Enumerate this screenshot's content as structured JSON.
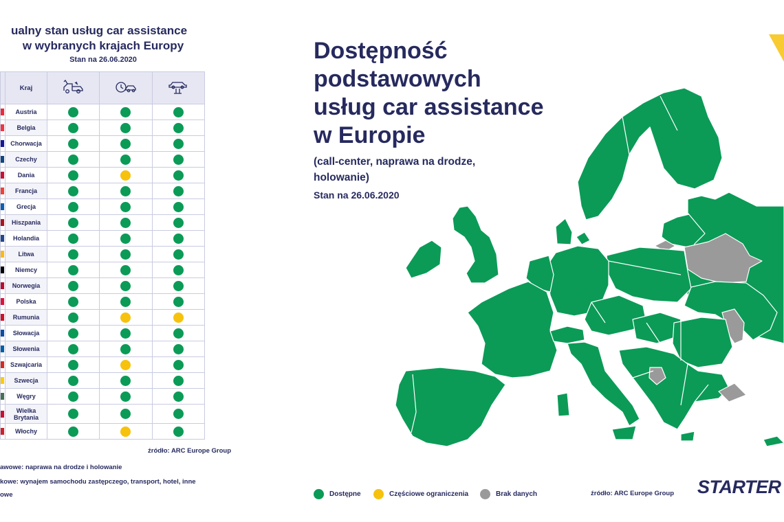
{
  "left_panel": {
    "title_line1": "ualny stan usług car assistance",
    "title_line2": "w wybranych krajach Europy",
    "date": "Stan na 26.06.2020",
    "header_country": "Kraj",
    "header_icons": [
      "tow-truck-icon",
      "clock-car-icon",
      "car-lift-icon"
    ],
    "source": "źródło: ARC Europe Group",
    "note1": "awowe: naprawa na drodze i holowanie",
    "note2": "kowe: wynajem samochodu zastępczego, transport, hotel, inne",
    "note3": "owe"
  },
  "chart_data": [
    {
      "type": "table",
      "title": "ualny stan usług car assistance w wybranych krajach Europy",
      "columns": [
        "Kraj",
        "tow-truck-icon",
        "clock-car-icon",
        "car-lift-icon"
      ],
      "rows": [
        {
          "country": "Austria",
          "flag": "#ed2939",
          "values": [
            "Dostępne",
            "Dostępne",
            "Dostępne"
          ]
        },
        {
          "country": "Belgia",
          "flag": "#ef3340",
          "values": [
            "Dostępne",
            "Dostępne",
            "Dostępne"
          ]
        },
        {
          "country": "Chorwacja",
          "flag": "#171796",
          "values": [
            "Dostępne",
            "Dostępne",
            "Dostępne"
          ]
        },
        {
          "country": "Czechy",
          "flag": "#11457e",
          "values": [
            "Dostępne",
            "Dostępne",
            "Dostępne"
          ]
        },
        {
          "country": "Dania",
          "flag": "#c8102e",
          "values": [
            "Dostępne",
            "Częściowe ograniczenia",
            "Dostępne"
          ]
        },
        {
          "country": "Francja",
          "flag": "#ef4135",
          "values": [
            "Dostępne",
            "Dostępne",
            "Dostępne"
          ]
        },
        {
          "country": "Grecja",
          "flag": "#0d5eaf",
          "values": [
            "Dostępne",
            "Dostępne",
            "Dostępne"
          ]
        },
        {
          "country": "Hiszpania",
          "flag": "#aa151b",
          "values": [
            "Dostępne",
            "Dostępne",
            "Dostępne"
          ]
        },
        {
          "country": "Holandia",
          "flag": "#21468b",
          "values": [
            "Dostępne",
            "Dostępne",
            "Dostępne"
          ]
        },
        {
          "country": "Litwa",
          "flag": "#fdb913",
          "values": [
            "Dostępne",
            "Dostępne",
            "Dostępne"
          ]
        },
        {
          "country": "Niemcy",
          "flag": "#000000",
          "values": [
            "Dostępne",
            "Dostępne",
            "Dostępne"
          ]
        },
        {
          "country": "Norwegia",
          "flag": "#ba0c2f",
          "values": [
            "Dostępne",
            "Dostępne",
            "Dostępne"
          ]
        },
        {
          "country": "Polska",
          "flag": "#dc143c",
          "values": [
            "Dostępne",
            "Dostępne",
            "Dostępne"
          ]
        },
        {
          "country": "Rumunia",
          "flag": "#ce1126",
          "values": [
            "Dostępne",
            "Częściowe ograniczenia",
            "Częściowe ograniczenia"
          ]
        },
        {
          "country": "Słowacja",
          "flag": "#0b4ea2",
          "values": [
            "Dostępne",
            "Dostępne",
            "Dostępne"
          ]
        },
        {
          "country": "Słowenia",
          "flag": "#005da4",
          "values": [
            "Dostępne",
            "Dostępne",
            "Dostępne"
          ]
        },
        {
          "country": "Szwajcaria",
          "flag": "#d52b1e",
          "values": [
            "Dostępne",
            "Częściowe ograniczenia",
            "Dostępne"
          ]
        },
        {
          "country": "Szwecja",
          "flag": "#fecc00",
          "values": [
            "Dostępne",
            "Dostępne",
            "Dostępne"
          ]
        },
        {
          "country": "Węgry",
          "flag": "#477050",
          "values": [
            "Dostępne",
            "Dostępne",
            "Dostępne"
          ]
        },
        {
          "country": "Wielka Brytania",
          "flag": "#c8102e",
          "values": [
            "Dostępne",
            "Dostępne",
            "Dostępne"
          ]
        },
        {
          "country": "Włochy",
          "flag": "#cd212a",
          "values": [
            "Dostępne",
            "Częściowe ograniczenia",
            "Dostępne"
          ]
        }
      ]
    },
    {
      "type": "choropleth-map",
      "title": "Dostępność podstawowych usług car assistance w Europie",
      "subtitle": "(call-center, naprawa na drodze, holowanie)",
      "date": "Stan na 26.06.2020",
      "categories": [
        {
          "label": "Dostępne",
          "color": "#0b9b57"
        },
        {
          "label": "Częściowe ograniczenia",
          "color": "#f6c20d"
        },
        {
          "label": "Brak danych",
          "color": "#9a9a9a"
        }
      ],
      "regions": [
        {
          "name": "Białoruś",
          "status": "Brak danych"
        },
        {
          "name": "Mołdawia",
          "status": "Brak danych"
        },
        {
          "name": "Bośnia i Hercegowina",
          "status": "Brak danych"
        },
        {
          "name": "Obwód kaliningradzki",
          "status": "Brak danych"
        },
        {
          "name": "Turcja (europejska)",
          "status": "Brak danych"
        }
      ]
    }
  ],
  "map_panel": {
    "title_lines": [
      "Dostępność",
      "podstawowych",
      "usług car assistance",
      "w Europie"
    ],
    "subtitle_line1": "(call-center, naprawa na drodze,",
    "subtitle_line2": "holowanie)",
    "date": "Stan na 26.06.2020",
    "source": "źródło: ARC Europe Group",
    "logo": "STARTER"
  },
  "colors": {
    "available": "#0b9b57",
    "partial": "#f6c20d",
    "no_data": "#9a9a9a",
    "navy": "#262a5e",
    "accent_yellow": "#f6c20d"
  }
}
